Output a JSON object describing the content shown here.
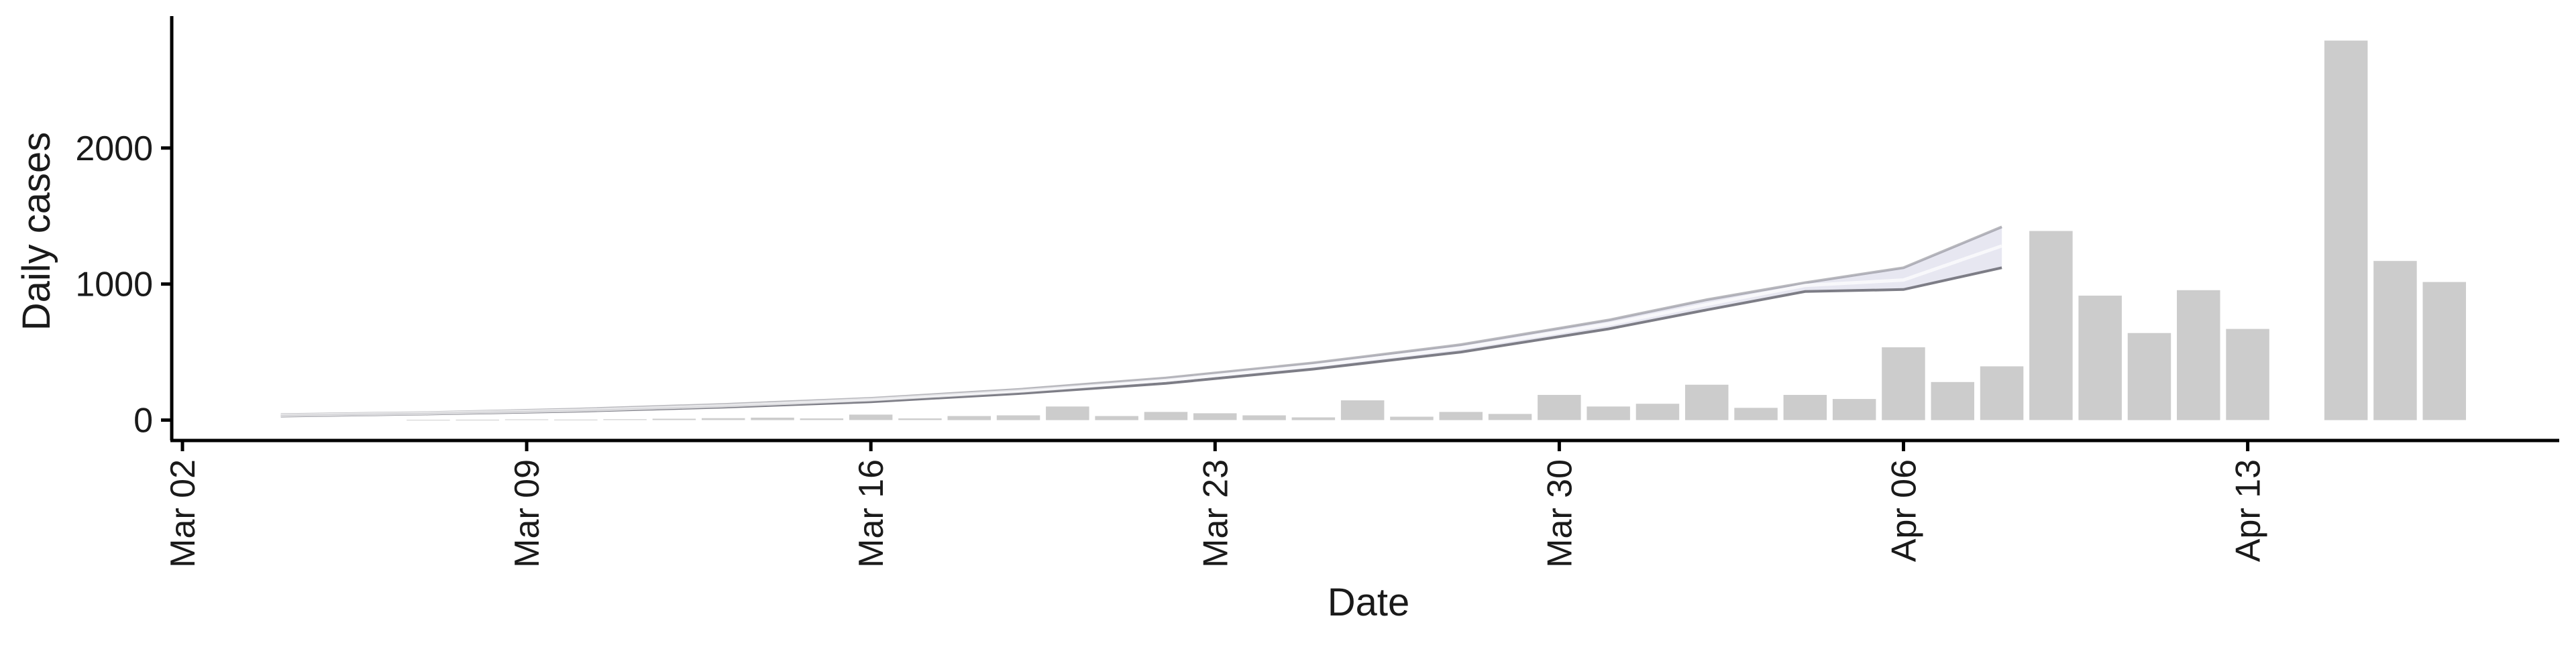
{
  "chart_data": {
    "type": "bar",
    "xlabel": "Date",
    "ylabel": "Daily cases",
    "x_ticks": [
      "Mar 02",
      "Mar 09",
      "Mar 16",
      "Mar 23",
      "Mar 30",
      "Apr 06",
      "Apr 13"
    ],
    "y_ticks": [
      0,
      1000,
      2000
    ],
    "ylim": [
      -150,
      2950
    ],
    "grid": false,
    "legend": "none",
    "bars": {
      "dates": [
        "2020-03-07",
        "2020-03-08",
        "2020-03-09",
        "2020-03-10",
        "2020-03-11",
        "2020-03-12",
        "2020-03-13",
        "2020-03-14",
        "2020-03-15",
        "2020-03-16",
        "2020-03-17",
        "2020-03-18",
        "2020-03-19",
        "2020-03-20",
        "2020-03-21",
        "2020-03-22",
        "2020-03-23",
        "2020-03-24",
        "2020-03-25",
        "2020-03-26",
        "2020-03-27",
        "2020-03-28",
        "2020-03-29",
        "2020-03-30",
        "2020-03-31",
        "2020-04-01",
        "2020-04-02",
        "2020-04-03",
        "2020-04-04",
        "2020-04-05",
        "2020-04-06",
        "2020-04-07",
        "2020-04-08",
        "2020-04-09",
        "2020-04-10",
        "2020-04-11",
        "2020-04-12",
        "2020-04-13",
        "2020-04-15",
        "2020-04-16",
        "2020-04-17"
      ],
      "values": [
        2,
        3,
        5,
        4,
        6,
        10,
        14,
        18,
        12,
        40,
        12,
        30,
        35,
        100,
        30,
        60,
        50,
        35,
        20,
        145,
        25,
        60,
        45,
        185,
        100,
        120,
        260,
        90,
        185,
        155,
        535,
        280,
        395,
        1390,
        915,
        640,
        955,
        670,
        2790,
        1170,
        1015
      ]
    },
    "model_estimate": {
      "dates": [
        "2020-03-04",
        "2020-03-07",
        "2020-03-10",
        "2020-03-13",
        "2020-03-16",
        "2020-03-19",
        "2020-03-22",
        "2020-03-25",
        "2020-03-28",
        "2020-03-31",
        "2020-04-02",
        "2020-04-04",
        "2020-04-06",
        "2020-04-08"
      ],
      "upper": [
        40,
        55,
        80,
        115,
        160,
        225,
        310,
        420,
        555,
        735,
        885,
        1010,
        1120,
        1420
      ],
      "median": [
        35,
        50,
        72,
        105,
        150,
        212,
        292,
        400,
        530,
        705,
        850,
        990,
        1030,
        1280
      ],
      "lower": [
        30,
        45,
        65,
        95,
        135,
        195,
        270,
        375,
        500,
        670,
        810,
        945,
        960,
        1120
      ]
    },
    "colors": {
      "bars": "#cccccc",
      "line": "#7d7d86",
      "ribbon": "#e4e4f0",
      "axis": "#000000"
    }
  }
}
